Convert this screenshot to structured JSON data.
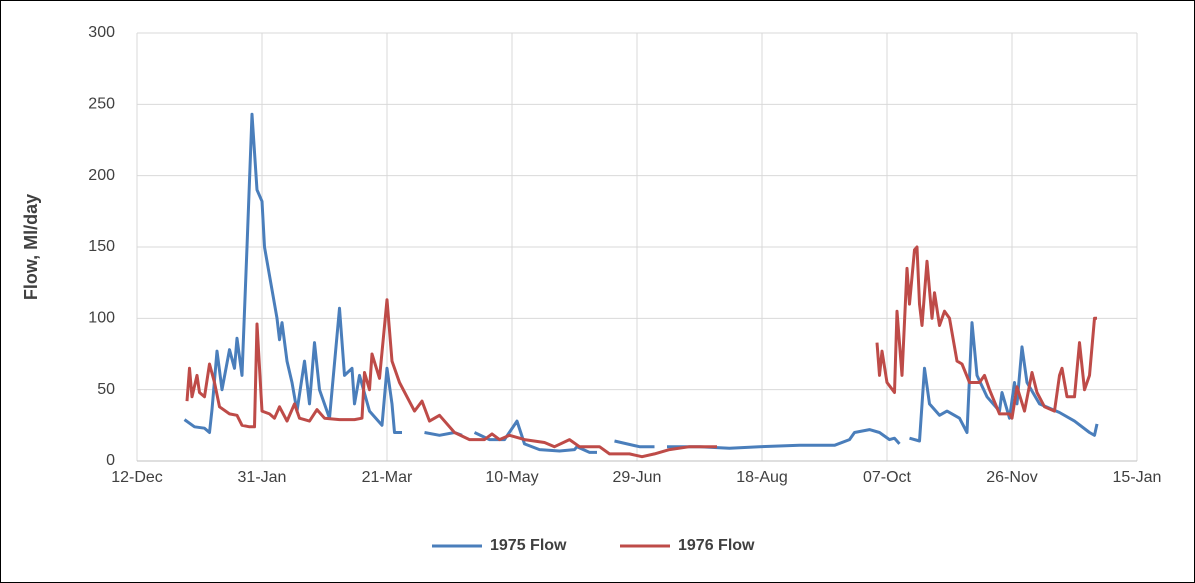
{
  "chart_data": {
    "type": "line",
    "y_label": "Flow, Ml/day",
    "xlim": [
      0,
      400
    ],
    "xticks": [
      {
        "value": 0,
        "label": "12-Dec"
      },
      {
        "value": 50,
        "label": "31-Jan"
      },
      {
        "value": 100,
        "label": "21-Mar"
      },
      {
        "value": 150,
        "label": "10-May"
      },
      {
        "value": 200,
        "label": "29-Jun"
      },
      {
        "value": 250,
        "label": "18-Aug"
      },
      {
        "value": 300,
        "label": "07-Oct"
      },
      {
        "value": 350,
        "label": "26-Nov"
      },
      {
        "value": 400,
        "label": "15-Jan"
      }
    ],
    "ylim": [
      0,
      300
    ],
    "yticks": [
      0,
      50,
      100,
      150,
      200,
      250,
      300
    ],
    "grid": true,
    "legend": "bottom",
    "series": [
      {
        "name": "1975 Flow",
        "color": "#4a7ebb",
        "x": [
          19,
          23,
          27,
          29,
          30,
          32,
          34,
          37,
          39,
          40,
          42,
          44,
          46,
          48,
          50,
          51,
          54,
          56,
          57,
          58,
          60,
          62,
          64,
          67,
          69,
          71,
          73,
          77,
          81,
          83,
          86,
          87,
          89,
          93,
          98,
          100,
          102,
          103,
          106,
          108,
          115,
          121,
          127,
          130,
          132,
          135,
          141,
          147,
          152,
          155,
          161,
          169,
          175,
          176,
          181,
          184,
          186,
          191,
          201,
          207,
          209,
          212,
          225,
          237,
          249,
          265,
          279,
          285,
          287,
          293,
          297,
          301,
          303,
          305,
          307,
          309,
          313,
          315,
          317,
          321,
          324,
          329,
          332,
          334,
          336,
          340,
          345,
          346,
          349,
          351,
          352,
          354,
          356,
          361,
          369,
          375,
          381,
          383,
          384
        ],
        "values": [
          29,
          24,
          23,
          20,
          36,
          77,
          50,
          78,
          65,
          86,
          60,
          150,
          243,
          190,
          182,
          150,
          120,
          100,
          85,
          97,
          70,
          55,
          35,
          70,
          40,
          83,
          50,
          30,
          107,
          60,
          65,
          40,
          60,
          35,
          25,
          65,
          40,
          20,
          20,
          null,
          20,
          18,
          20,
          18,
          null,
          20,
          15,
          15,
          28,
          12,
          8,
          7,
          8,
          10,
          6,
          6,
          null,
          14,
          10,
          10,
          null,
          10,
          10,
          9,
          10,
          11,
          11,
          15,
          20,
          22,
          20,
          15,
          16,
          12,
          null,
          16,
          14,
          65,
          40,
          32,
          35,
          30,
          20,
          97,
          60,
          45,
          35,
          48,
          30,
          55,
          40,
          80,
          55,
          40,
          34,
          28,
          20,
          18,
          26
        ]
      },
      {
        "name": "1976 Flow",
        "color": "#be4b48",
        "x": [
          20,
          21,
          22,
          24,
          25,
          27,
          29,
          31,
          33,
          37,
          40,
          42,
          45,
          47,
          48,
          50,
          53,
          55,
          57,
          60,
          63,
          65,
          69,
          72,
          75,
          81,
          87,
          90,
          91,
          93,
          94,
          97,
          100,
          102,
          105,
          108,
          111,
          114,
          117,
          121,
          127,
          133,
          139,
          142,
          145,
          149,
          155,
          163,
          167,
          173,
          177,
          185,
          189,
          197,
          202,
          207,
          213,
          221,
          232,
          234,
          296,
          297,
          298,
          300,
          303,
          304,
          306,
          308,
          309,
          311,
          312,
          313,
          314,
          316,
          318,
          319,
          321,
          323,
          325,
          328,
          330,
          333,
          337,
          339,
          341,
          345,
          349,
          350,
          352,
          355,
          358,
          360,
          363,
          367,
          369,
          370,
          372,
          375,
          377,
          379,
          381,
          383,
          384
        ],
        "values": [
          42,
          65,
          45,
          60,
          48,
          45,
          68,
          55,
          38,
          33,
          32,
          25,
          24,
          24,
          96,
          35,
          33,
          30,
          38,
          28,
          40,
          30,
          28,
          36,
          30,
          29,
          29,
          30,
          62,
          50,
          75,
          58,
          113,
          70,
          55,
          45,
          35,
          42,
          28,
          32,
          20,
          15,
          15,
          19,
          15,
          18,
          15,
          13,
          10,
          15,
          10,
          10,
          5,
          5,
          3,
          5,
          8,
          10,
          10,
          null,
          83,
          60,
          77,
          55,
          48,
          105,
          60,
          135,
          110,
          148,
          150,
          110,
          95,
          140,
          100,
          118,
          95,
          105,
          100,
          70,
          68,
          55,
          55,
          60,
          50,
          33,
          33,
          30,
          52,
          35,
          62,
          48,
          38,
          35,
          60,
          65,
          45,
          45,
          83,
          50,
          60,
          100,
          100
        ]
      }
    ]
  }
}
